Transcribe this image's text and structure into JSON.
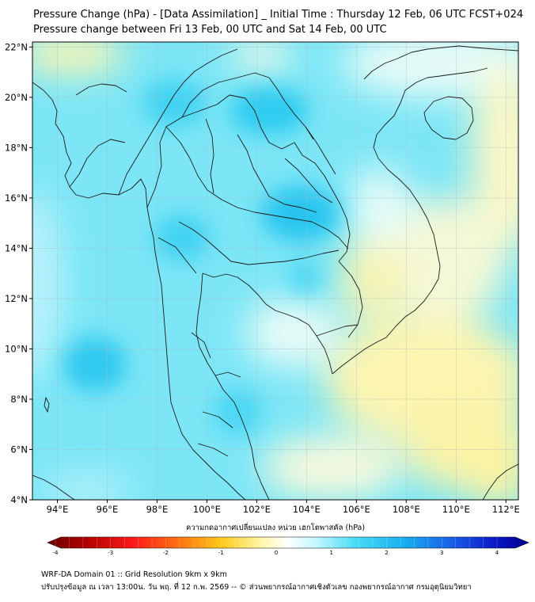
{
  "title_line1": "Pressure Change (hPa) - [Data Assimilation] _ Initial Time : Thursday 12 Feb, 06 UTC FCST+024",
  "title_line2": "Pressure change between Fri 13 Feb, 00 UTC and Sat 14 Feb, 00 UTC",
  "map": {
    "lon_range": [
      93,
      112.5
    ],
    "lat_range": [
      4,
      22.2
    ],
    "lon_ticks": [
      "94°E",
      "96°E",
      "98°E",
      "100°E",
      "102°E",
      "104°E",
      "106°E",
      "108°E",
      "110°E",
      "112°E"
    ],
    "lat_ticks": [
      "22°N",
      "20°N",
      "18°N",
      "16°N",
      "14°N",
      "12°N",
      "10°N",
      "8°N",
      "6°N",
      "4°N"
    ],
    "grid": true
  },
  "colorbar": {
    "title": "ความกดอากาศเปลี่ยนแปลง หน่วย เฮกโตพาสคัล (hPa)",
    "range": [
      -4,
      4
    ],
    "tick_labels": [
      "-4",
      "-3",
      "-2",
      "-1",
      "0",
      "1",
      "2",
      "3",
      "4"
    ],
    "colors": [
      "#6b0000",
      "#c00000",
      "#ff2020",
      "#ff8a1a",
      "#ffd21a",
      "#fff59a",
      "#ffffff",
      "#b8f4ff",
      "#40d8f4",
      "#14a8f0",
      "#1040e0",
      "#0000a0"
    ]
  },
  "footer_line1": "WRF-DA Domain 01 :: Grid Resolution 9km x 9km",
  "footer_line2": "ปรับปรุงข้อมูล ณ เวลา 13:00น. วัน พฤ. ที่ 12 ก.พ. 2569 -- © ส่วนพยากรณ์อากาศเชิงตัวเลข กองพยากรณ์อากาศ กรมอุตุนิยมวิทยา"
}
